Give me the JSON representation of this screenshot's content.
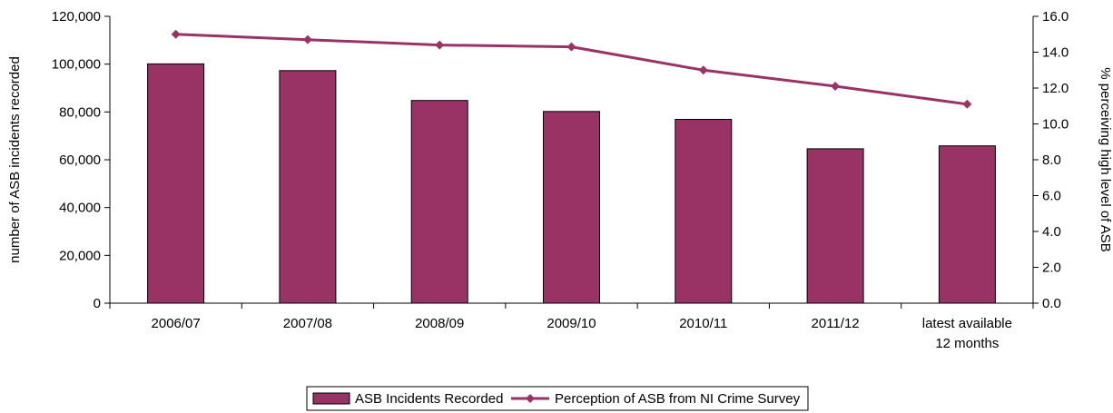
{
  "chart_data": {
    "type": "bar",
    "categories": [
      "2006/07",
      "2007/08",
      "2008/09",
      "2009/10",
      "2010/11",
      "2011/12",
      "latest available 12 months"
    ],
    "category_label_lines": [
      [
        "2006/07"
      ],
      [
        "2007/08"
      ],
      [
        "2008/09"
      ],
      [
        "2009/10"
      ],
      [
        "2010/11"
      ],
      [
        "2011/12"
      ],
      [
        "latest available",
        "12 months"
      ]
    ],
    "series": [
      {
        "name": "ASB Incidents Recorded",
        "kind": "bar",
        "axis": "left",
        "color": "#993366",
        "values": [
          100100,
          97300,
          84800,
          80200,
          76900,
          64600,
          65800
        ]
      },
      {
        "name": "Perception of ASB from NI Crime Survey",
        "kind": "line",
        "axis": "right",
        "color": "#993366",
        "marker": "diamond",
        "values": [
          15.0,
          14.7,
          14.4,
          14.3,
          13.0,
          12.1,
          11.1
        ]
      }
    ],
    "ylabel": "number of ASB incidents recorded",
    "y2label": "% perceiving high level of ASB",
    "ylim": [
      0,
      120000
    ],
    "y2lim": [
      0,
      16
    ],
    "yticks": [
      "0",
      "20,000",
      "40,000",
      "60,000",
      "80,000",
      "100,000",
      "120,000"
    ],
    "y2ticks": [
      "0.0",
      "2.0",
      "4.0",
      "6.0",
      "8.0",
      "10.0",
      "12.0",
      "14.0",
      "16.0"
    ],
    "grid": false,
    "legend_position": "bottom"
  }
}
